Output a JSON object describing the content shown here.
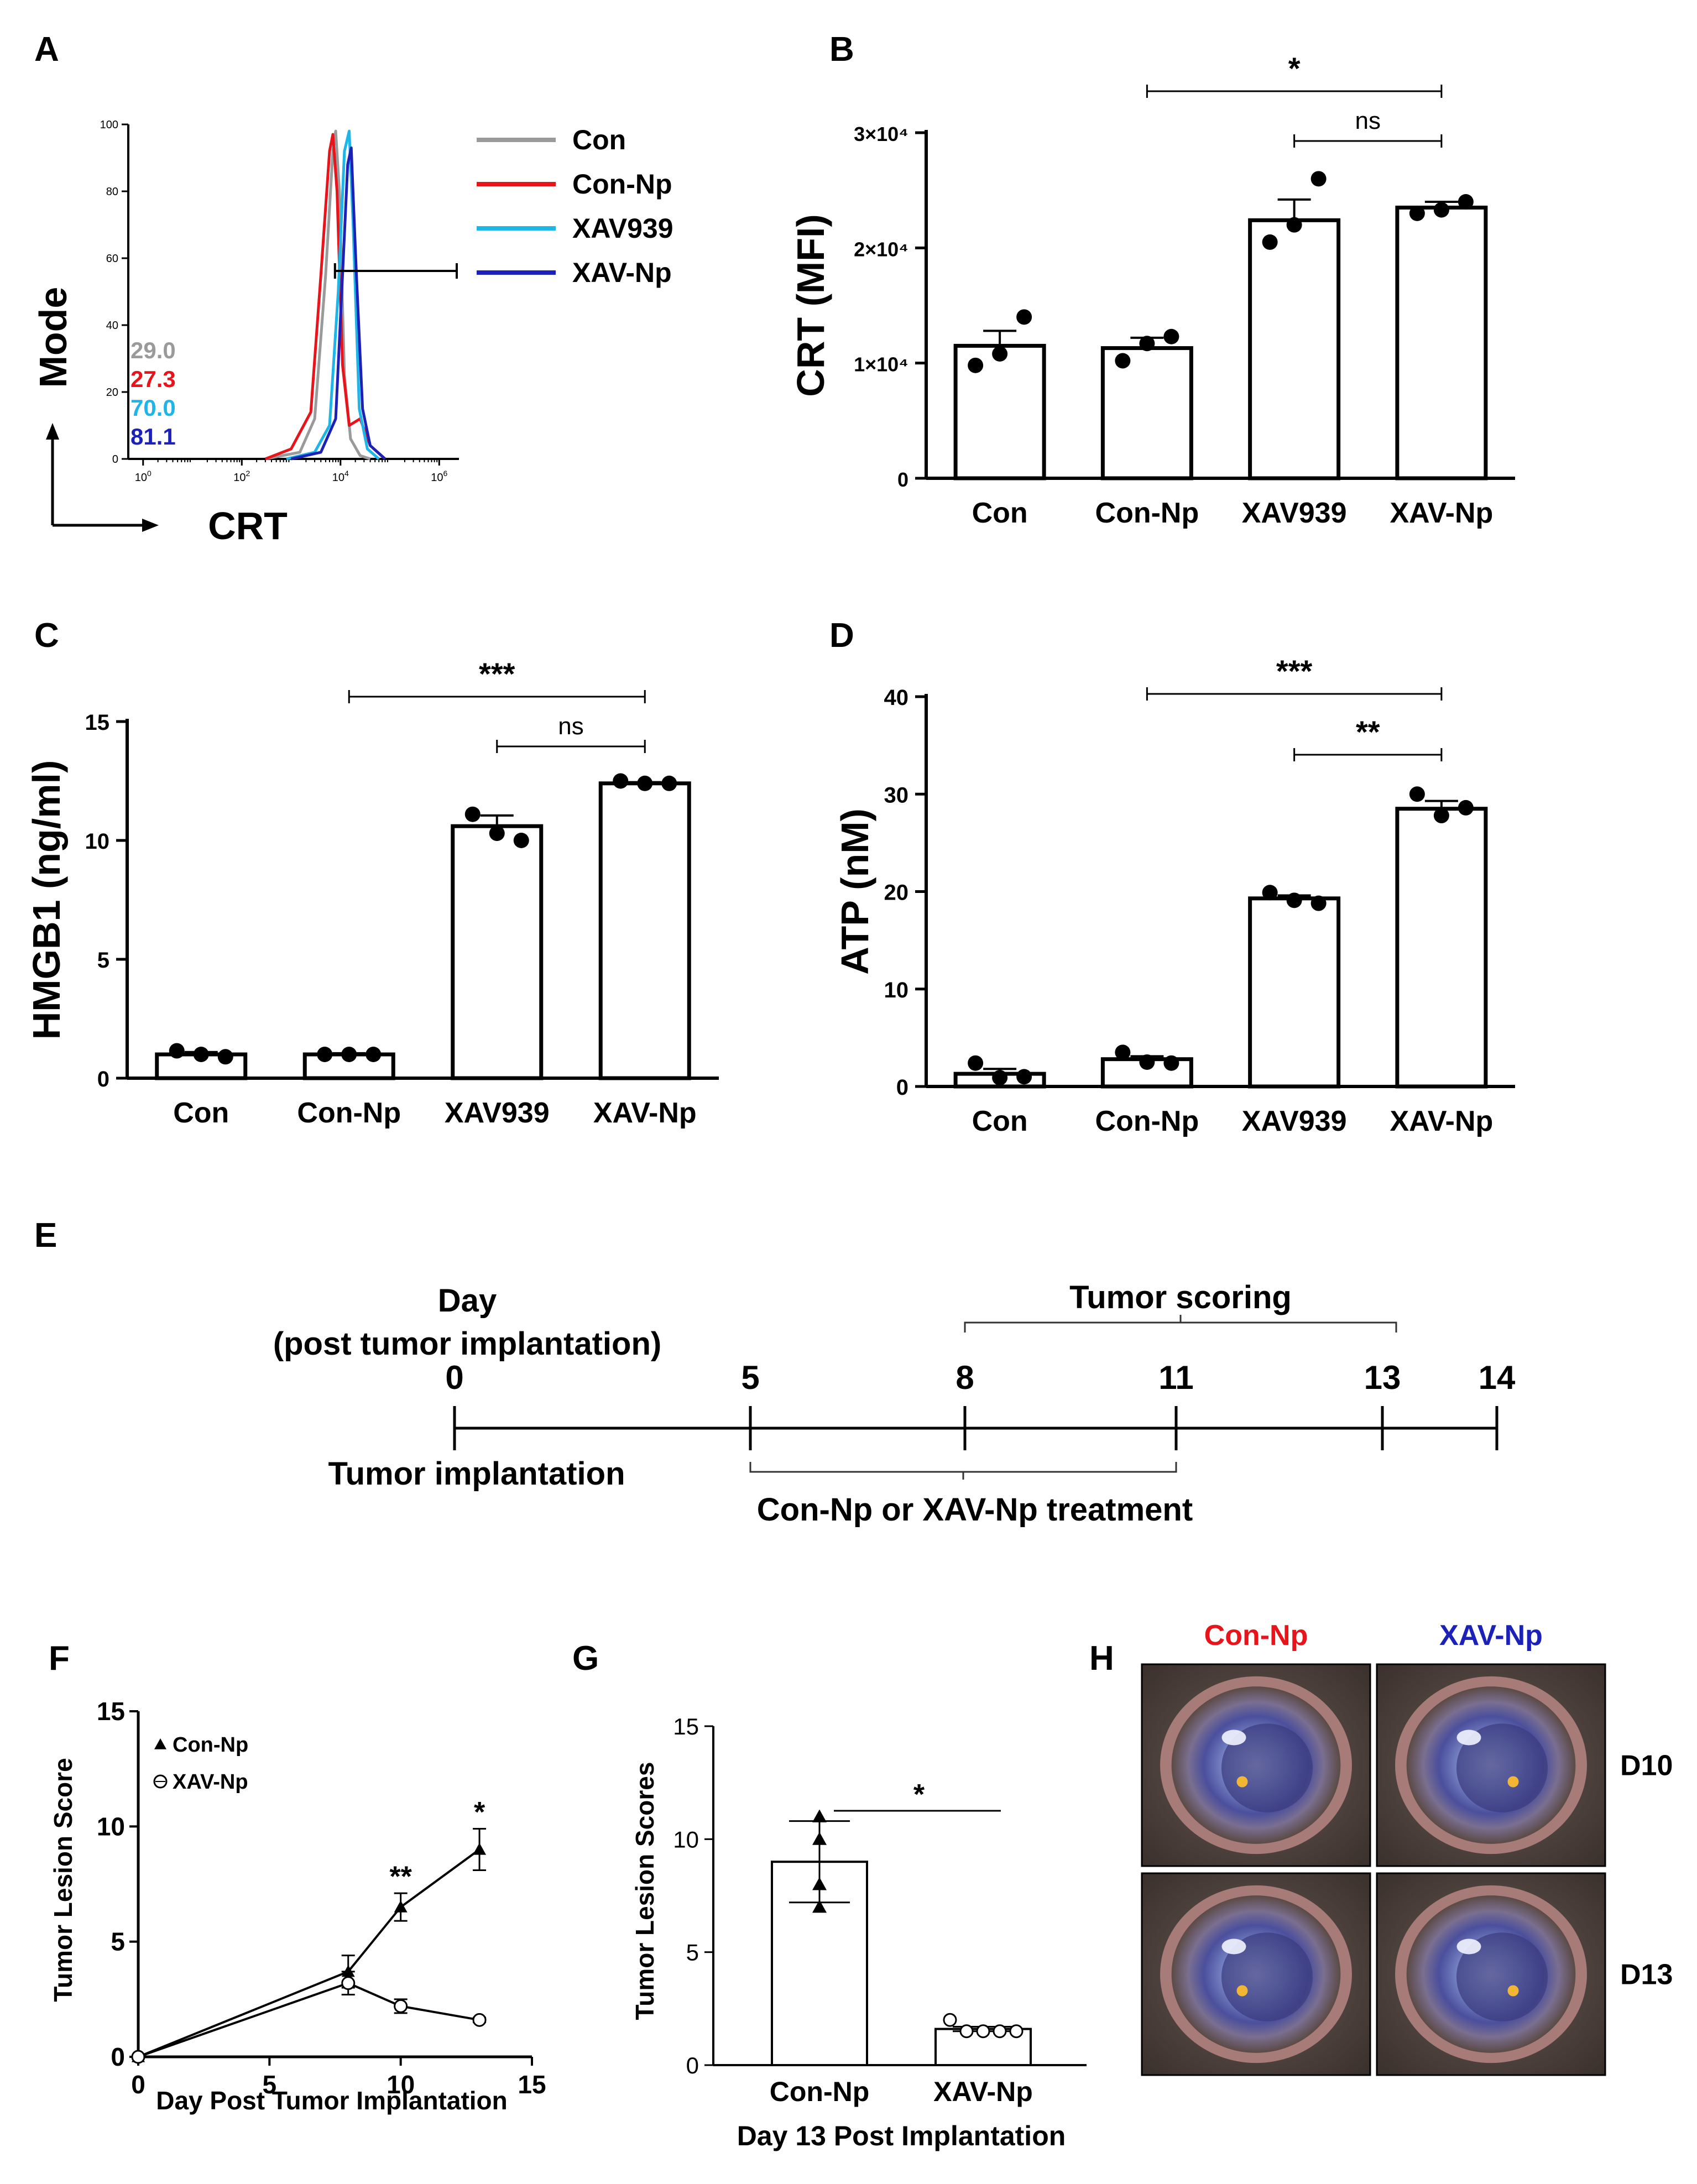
{
  "panels": {
    "A": "A",
    "B": "B",
    "C": "C",
    "D": "D",
    "E": "E",
    "F": "F",
    "G": "G",
    "H": "H"
  },
  "chart_data": [
    {
      "panel": "A",
      "type": "line",
      "subtype": "flow-cytometry-histogram",
      "xlabel": "CRT",
      "ylabel": "Mode",
      "x_scale": "log",
      "x_ticks": [
        "10^0",
        "10^2",
        "10^4",
        "10^6"
      ],
      "y_ticks": [
        0,
        20,
        40,
        60,
        80,
        100
      ],
      "ylim": [
        0,
        100
      ],
      "gate_range": [
        10000,
        1000000
      ],
      "series": [
        {
          "name": "Con",
          "color": "#9a9a9a",
          "percent": "29.0",
          "peak_x": 8000,
          "points": [
            [
              300,
              0
            ],
            [
              1500,
              2
            ],
            [
              3000,
              12
            ],
            [
              5000,
              55
            ],
            [
              7000,
              92
            ],
            [
              8000,
              98
            ],
            [
              9500,
              80
            ],
            [
              12000,
              25
            ],
            [
              16000,
              6
            ],
            [
              25000,
              1
            ],
            [
              40000,
              0
            ]
          ]
        },
        {
          "name": "Con-Np",
          "color": "#e8141c",
          "percent": "27.3",
          "peak_x": 7000,
          "points": [
            [
              300,
              0
            ],
            [
              1000,
              3
            ],
            [
              2500,
              14
            ],
            [
              4000,
              55
            ],
            [
              6000,
              92
            ],
            [
              7000,
              97
            ],
            [
              8500,
              80
            ],
            [
              11000,
              28
            ],
            [
              15000,
              10
            ],
            [
              25000,
              12
            ],
            [
              40000,
              4
            ],
            [
              80000,
              0
            ]
          ]
        },
        {
          "name": "XAV939",
          "color": "#1fb5e6",
          "percent": "70.0",
          "peak_x": 15000,
          "points": [
            [
              800,
              0
            ],
            [
              3000,
              2
            ],
            [
              6000,
              10
            ],
            [
              9000,
              50
            ],
            [
              12000,
              92
            ],
            [
              15000,
              98
            ],
            [
              18000,
              70
            ],
            [
              24000,
              15
            ],
            [
              35000,
              3
            ],
            [
              60000,
              0
            ]
          ]
        },
        {
          "name": "XAV-Np",
          "color": "#1c22b8",
          "percent": "81.1",
          "peak_x": 16500,
          "points": [
            [
              1000,
              0
            ],
            [
              4000,
              2
            ],
            [
              8000,
              12
            ],
            [
              11000,
              55
            ],
            [
              14000,
              88
            ],
            [
              16500,
              93
            ],
            [
              21000,
              55
            ],
            [
              28000,
              15
            ],
            [
              40000,
              4
            ],
            [
              80000,
              0
            ]
          ]
        }
      ]
    },
    {
      "panel": "B",
      "type": "bar",
      "ylabel": "CRT (MFI)",
      "categories": [
        "Con",
        "Con-Np",
        "XAV939",
        "XAV-Np"
      ],
      "values": [
        11500,
        11300,
        22400,
        23500
      ],
      "sem": [
        1300,
        900,
        1800,
        500
      ],
      "points": [
        [
          9800,
          10800,
          14000
        ],
        [
          10200,
          11700,
          12300
        ],
        [
          20500,
          22000,
          26000
        ],
        [
          23000,
          23300,
          24000
        ]
      ],
      "ylim": [
        0,
        30000
      ],
      "yticks": [
        0,
        10000,
        20000,
        30000
      ],
      "ytick_labels": [
        "0",
        "1×10⁴",
        "2×10⁴",
        "3×10⁴"
      ],
      "significance": [
        {
          "from": "Con-Np",
          "to": "XAV-Np",
          "label": "*"
        },
        {
          "from": "XAV939",
          "to": "XAV-Np",
          "label": "ns"
        }
      ]
    },
    {
      "panel": "C",
      "type": "bar",
      "ylabel": "HMGB1 (ng/ml)",
      "categories": [
        "Con",
        "Con-Np",
        "XAV939",
        "XAV-Np"
      ],
      "values": [
        1.0,
        1.0,
        10.6,
        12.4
      ],
      "sem": [
        0.1,
        0.05,
        0.45,
        0.05
      ],
      "points": [
        [
          1.15,
          1.0,
          0.9
        ],
        [
          1.0,
          1.0,
          1.0
        ],
        [
          11.1,
          10.3,
          10.0
        ],
        [
          12.5,
          12.4,
          12.4
        ]
      ],
      "ylim": [
        0,
        15
      ],
      "yticks": [
        0,
        5,
        10,
        15
      ],
      "significance": [
        {
          "from": "Con-Np",
          "to": "XAV-Np",
          "label": "***"
        },
        {
          "from": "XAV939",
          "to": "XAV-Np",
          "label": "ns"
        }
      ]
    },
    {
      "panel": "D",
      "type": "bar",
      "ylabel": "ATP (nM)",
      "categories": [
        "Con",
        "Con-Np",
        "XAV939",
        "XAV-Np"
      ],
      "values": [
        1.3,
        2.8,
        19.3,
        28.5
      ],
      "sem": [
        0.5,
        0.3,
        0.3,
        0.8
      ],
      "points": [
        [
          2.4,
          0.9,
          1.0
        ],
        [
          3.5,
          2.5,
          2.4
        ],
        [
          19.9,
          19.1,
          18.8
        ],
        [
          30.0,
          27.8,
          28.6
        ]
      ],
      "ylim": [
        0,
        40
      ],
      "yticks": [
        0,
        10,
        20,
        30,
        40
      ],
      "significance": [
        {
          "from": "Con-Np",
          "to": "XAV-Np",
          "label": "***"
        },
        {
          "from": "XAV939",
          "to": "XAV-Np",
          "label": "**"
        }
      ]
    },
    {
      "panel": "F",
      "type": "line",
      "xlabel": "Day Post  Tumor Implantation",
      "ylabel": "Tumor Lesion Score",
      "xlim": [
        0,
        15
      ],
      "ylim": [
        0,
        15
      ],
      "xticks": [
        0,
        5,
        10,
        15
      ],
      "yticks": [
        0,
        5,
        10,
        15
      ],
      "series": [
        {
          "name": "Con-Np",
          "marker": "triangle",
          "x": [
            0,
            8,
            10,
            13
          ],
          "y": [
            0,
            3.7,
            6.5,
            9.0
          ],
          "err": [
            0,
            0.7,
            0.6,
            0.9
          ]
        },
        {
          "name": "XAV-Np",
          "marker": "open-circle",
          "x": [
            0,
            8,
            10,
            13
          ],
          "y": [
            0,
            3.2,
            2.2,
            1.6
          ],
          "err": [
            0,
            0.5,
            0.3,
            0.1
          ]
        }
      ],
      "annotations": [
        {
          "x": 10,
          "y": 7.4,
          "label": "**"
        },
        {
          "x": 13,
          "y": 10.2,
          "label": "*"
        }
      ]
    },
    {
      "panel": "G",
      "type": "bar",
      "xlabel": "Day 13 Post  Implantation",
      "ylabel": "Tumor  Lesion  Scores",
      "categories": [
        "Con-Np",
        "XAV-Np"
      ],
      "values": [
        9.0,
        1.6
      ],
      "sd": [
        1.8,
        0.1
      ],
      "points": [
        [
          11.0,
          10.0,
          8.0,
          7.0
        ],
        [
          2.0,
          1.5,
          1.5,
          1.5,
          1.5
        ]
      ],
      "markers": [
        "triangle",
        "open-circle"
      ],
      "ylim": [
        0,
        15
      ],
      "yticks": [
        0,
        5,
        10,
        15
      ],
      "significance": [
        {
          "from": "Con-Np",
          "to": "XAV-Np",
          "label": "*"
        }
      ]
    }
  ],
  "timeline": {
    "heading_line1": "Day",
    "heading_line2": "(post tumor implantation)",
    "days": [
      "0",
      "5",
      "8",
      "11",
      "13",
      "14"
    ],
    "day_values": [
      0,
      5,
      8,
      11,
      13,
      14
    ],
    "scoring_label": "Tumor scoring",
    "scoring_range": [
      8,
      13
    ],
    "implant_label": "Tumor implantation",
    "treatment_label": "Con-Np or XAV-Np treatment",
    "treatment_range": [
      5,
      11
    ]
  },
  "photos": {
    "col_labels": [
      "Con-Np",
      "XAV-Np"
    ],
    "col_colors": [
      "#e8141c",
      "#1c22b8"
    ],
    "row_labels": [
      "D10",
      "D13"
    ]
  }
}
